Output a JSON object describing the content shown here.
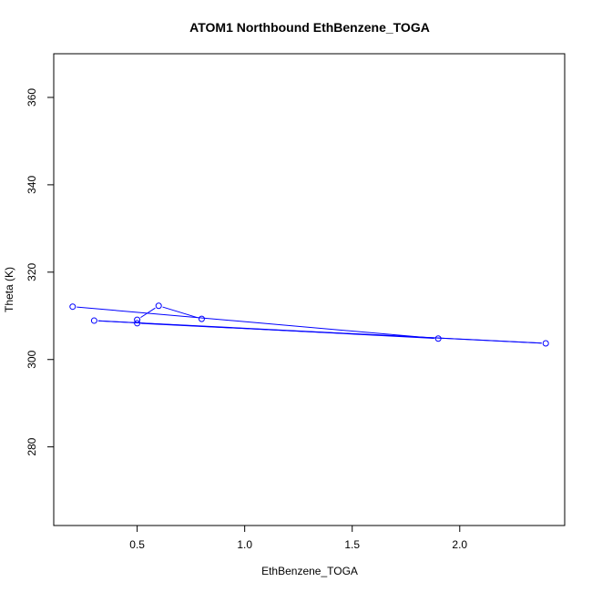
{
  "chart_data": {
    "type": "line",
    "title": "ATOM1 Northbound EthBenzene_TOGA",
    "xlabel": "EthBenzene_TOGA",
    "ylabel": "Theta (K)",
    "xlim": [
      0.2,
      2.4
    ],
    "ylim": [
      266,
      366
    ],
    "xticks": [
      0.5,
      1.0,
      1.5,
      2.0
    ],
    "xtick_labels": [
      "0.5",
      "1.0",
      "1.5",
      "2.0"
    ],
    "yticks": [
      280,
      300,
      320,
      340,
      360
    ],
    "ytick_labels": [
      "280",
      "300",
      "320",
      "340",
      "360"
    ],
    "grid": false,
    "series_color": "#0000ff",
    "series": [
      {
        "name": "",
        "points": [
          {
            "x": 0.2,
            "y": 312.1
          },
          {
            "x": 1.9,
            "y": 304.8
          },
          {
            "x": 0.3,
            "y": 308.9
          },
          {
            "x": 2.4,
            "y": 303.7
          },
          {
            "x": 0.5,
            "y": 308.3
          },
          {
            "x": 0.5,
            "y": 309.1
          },
          {
            "x": 0.6,
            "y": 312.3
          },
          {
            "x": 0.8,
            "y": 309.3
          }
        ]
      }
    ]
  }
}
